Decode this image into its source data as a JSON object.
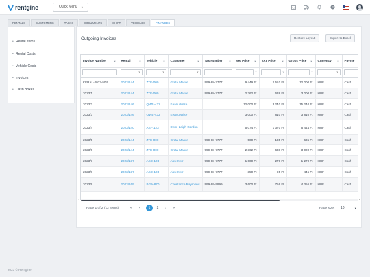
{
  "app": {
    "logo_text": "rentgine",
    "quick_menu": "Quick Menu"
  },
  "top_icons": [
    "inbox-icon",
    "truck-icon",
    "bell-icon",
    "help-icon",
    "us-flag-icon",
    "user-avatar-icon"
  ],
  "tabs": [
    {
      "label": "RENTALS",
      "active": false
    },
    {
      "label": "CUSTOMERS",
      "active": false
    },
    {
      "label": "TASKS",
      "active": false
    },
    {
      "label": "DOCUMENTS",
      "active": false
    },
    {
      "label": "SHIFT",
      "active": false
    },
    {
      "label": "VEHICLES",
      "active": false
    },
    {
      "label": "FINANCES",
      "active": true
    }
  ],
  "sidebar": {
    "items": [
      {
        "label": "Rental Items"
      },
      {
        "label": "Rental Costs"
      },
      {
        "label": "Vehicle Costs"
      },
      {
        "label": "Invoices"
      },
      {
        "label": "Cash Boxes"
      }
    ]
  },
  "main": {
    "title": "Outgoing Invoices",
    "restore_label": "Restore Layout",
    "export_label": "Export to Excel"
  },
  "table": {
    "columns": [
      "Invoice Number",
      "Rental",
      "Vehicle",
      "Customer",
      "Tax Number",
      "Net Price",
      "VAT Price",
      "Gross Price",
      "Currency",
      "Payme"
    ],
    "rows": [
      [
        "KERAL-2023-504",
        "2023/144",
        "ZTE-000",
        "Greta Mason",
        "999-88-7777",
        "9 449 Ft",
        "2 551 Ft",
        "12 000 Ft",
        "HUF",
        "Cash"
      ],
      [
        "2023/1",
        "2023/144",
        "ZTE-000",
        "Greta Mason",
        "999-88-7777",
        "2 362 Ft",
        "638 Ft",
        "3 000 Ft",
        "HUF",
        "Cash"
      ],
      [
        "2023/2",
        "2023/146",
        "QWE-432",
        "Keanu Wise",
        "",
        "12 000 Ft",
        "3 240 Ft",
        "15 240 Ft",
        "HUF",
        "Cash"
      ],
      [
        "2023/3",
        "2023/146",
        "QWE-432",
        "Keanu Wise",
        "",
        "3 000 Ft",
        "810 Ft",
        "3 810 Ft",
        "HUF",
        "Cash"
      ],
      [
        "2023/4",
        "2023/140",
        "ASF-123",
        "Demi-Leigh Gordon",
        "",
        "5 074 Ft",
        "1 370 Ft",
        "6 444 Ft",
        "HUF",
        "Cash"
      ],
      [
        "2023/5",
        "2023/144",
        "ZTE-000",
        "Greta Mason",
        "999-88-7777",
        "500 Ft",
        "135 Ft",
        "635 Ft",
        "HUF",
        "Cash"
      ],
      [
        "2023/6",
        "2023/144",
        "ZTE-000",
        "Greta Mason",
        "999-88-7777",
        "-2 362 Ft",
        "-638 Ft",
        "-3 000 Ft",
        "HUF",
        "Cash"
      ],
      [
        "2023/7",
        "2023/137",
        "ASD-123",
        "Alex Kerr",
        "999-88-7777",
        "1 000 Ft",
        "270 Ft",
        "1 270 Ft",
        "HUF",
        "Cash"
      ],
      [
        "2023/8",
        "2023/137",
        "ASD-123",
        "Alex Kerr",
        "999-88-7777",
        "350 Ft",
        "95 Ft",
        "445 Ft",
        "HUF",
        "Cash"
      ],
      [
        "2023/9",
        "2023/169",
        "BGA-870",
        "Constance Raymond",
        "999-99-9999",
        "3 600 Ft",
        "756 Ft",
        "4 356 Ft",
        "HUF",
        "Cash"
      ]
    ]
  },
  "pager": {
    "info": "Page 1 of 2 (12 items)",
    "pages": [
      "1",
      "2"
    ],
    "size_label": "Page size:",
    "size_value": "10"
  },
  "footer": "2023 © Rentgine"
}
